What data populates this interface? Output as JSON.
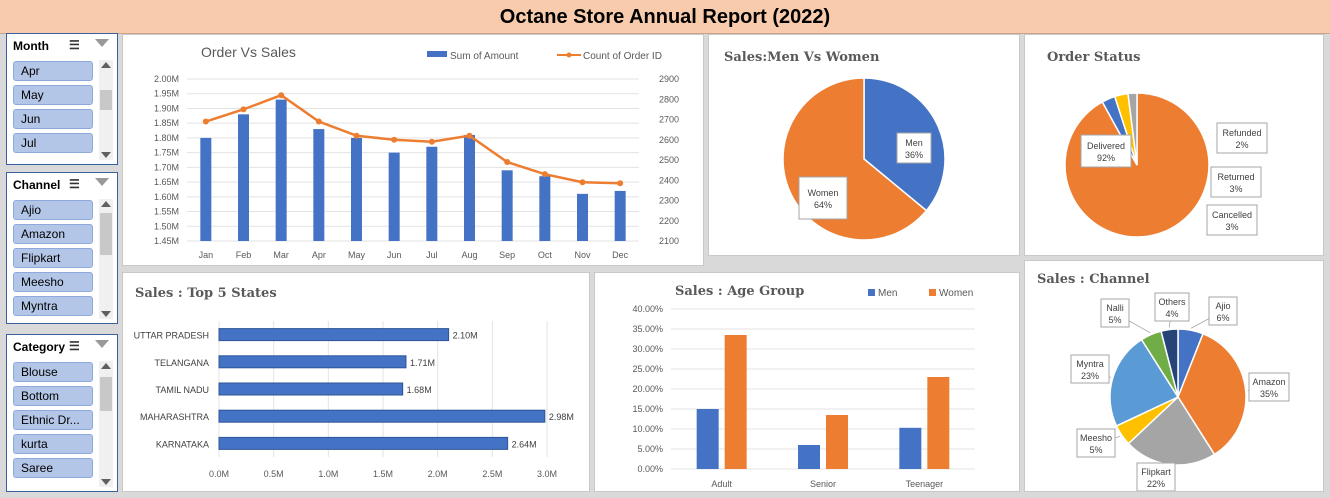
{
  "report_title": "Octane Store Annual Report (2022)",
  "slicers": {
    "month": {
      "header": "Month",
      "items": [
        "Apr",
        "May",
        "Jun",
        "Jul"
      ]
    },
    "channel": {
      "header": "Channel",
      "items": [
        "Ajio",
        "Amazon",
        "Flipkart",
        "Meesho",
        "Myntra"
      ]
    },
    "category": {
      "header": "Category",
      "items": [
        "Blouse",
        "Bottom",
        "Ethnic Dr...",
        "kurta",
        "Saree"
      ]
    }
  },
  "icons": {
    "multi_select": "multi-select-icon",
    "clear_filter": "clear-filter-icon"
  },
  "chart_data": [
    {
      "type": "bar",
      "title": "Order Vs Sales",
      "categories": [
        "Jan",
        "Feb",
        "Mar",
        "Apr",
        "May",
        "Jun",
        "Jul",
        "Aug",
        "Sep",
        "Oct",
        "Nov",
        "Dec"
      ],
      "series": [
        {
          "name": "Sum of Amount",
          "type": "bar",
          "axis": "left",
          "color": "#4472c4",
          "values": [
            1.8,
            1.88,
            1.93,
            1.83,
            1.8,
            1.75,
            1.77,
            1.81,
            1.69,
            1.67,
            1.61,
            1.62
          ]
        },
        {
          "name": "Count of Order ID",
          "type": "line",
          "axis": "right",
          "color": "#ed7d31",
          "values": [
            2690,
            2750,
            2820,
            2690,
            2620,
            2600,
            2590,
            2620,
            2490,
            2430,
            2390,
            2385
          ]
        }
      ],
      "yticks": [
        "2.00M",
        "1.95M",
        "1.90M",
        "1.85M",
        "1.80M",
        "1.75M",
        "1.70M",
        "1.65M",
        "1.60M",
        "1.55M",
        "1.50M",
        "1.45M"
      ],
      "ylim": [
        1.45,
        2.0
      ],
      "y2ticks": [
        "2900",
        "2800",
        "2700",
        "2600",
        "2500",
        "2400",
        "2300",
        "2200",
        "2100"
      ],
      "y2lim": [
        2100,
        2900
      ],
      "legend_position": "top"
    },
    {
      "type": "pie",
      "title": "Sales:Men Vs Women",
      "slices": [
        {
          "label": "Men",
          "pct": "36%",
          "value": 36,
          "color": "#4472c4"
        },
        {
          "label": "Women",
          "pct": "64%",
          "value": 64,
          "color": "#ed7d31"
        }
      ]
    },
    {
      "type": "pie",
      "title": "Order Status",
      "slices": [
        {
          "label": "Delivered",
          "pct": "92%",
          "value": 92,
          "color": "#ed7d31"
        },
        {
          "label": "Cancelled",
          "pct": "3%",
          "value": 3,
          "color": "#4472c4"
        },
        {
          "label": "Returned",
          "pct": "3%",
          "value": 3,
          "color": "#ffc000"
        },
        {
          "label": "Refunded",
          "pct": "2%",
          "value": 2,
          "color": "#a5a5a5"
        }
      ]
    },
    {
      "type": "bar",
      "orientation": "horizontal",
      "title": "Sales : Top 5 States",
      "categories": [
        "UTTAR PRADESH",
        "TELANGANA",
        "TAMIL NADU",
        "MAHARASHTRA",
        "KARNATAKA"
      ],
      "values": [
        2.1,
        1.71,
        1.68,
        2.98,
        2.64
      ],
      "data_labels": [
        "2.10M",
        "1.71M",
        "1.68M",
        "2.98M",
        "2.64M"
      ],
      "xticks": [
        "0.0M",
        "0.5M",
        "1.0M",
        "1.5M",
        "2.0M",
        "2.5M",
        "3.0M"
      ],
      "xlim": [
        0,
        3.0
      ],
      "color": "#4472c4"
    },
    {
      "type": "bar",
      "title": "Sales : Age Group",
      "categories": [
        "Adult",
        "Senior",
        "Teenager"
      ],
      "series": [
        {
          "name": "Men",
          "values": [
            15.0,
            6.0,
            10.3
          ],
          "color": "#4472c4"
        },
        {
          "name": "Women",
          "values": [
            33.5,
            13.5,
            23.0
          ],
          "color": "#ed7d31"
        }
      ],
      "yticks": [
        "40.00%",
        "35.00%",
        "30.00%",
        "25.00%",
        "20.00%",
        "15.00%",
        "10.00%",
        "5.00%",
        "0.00%"
      ],
      "ylim": [
        0,
        40
      ],
      "legend_position": "top-right"
    },
    {
      "type": "pie",
      "title": "Sales : Channel",
      "slices": [
        {
          "label": "Ajio",
          "pct": "6%",
          "value": 6,
          "color": "#4472c4"
        },
        {
          "label": "Amazon",
          "pct": "35%",
          "value": 35,
          "color": "#ed7d31"
        },
        {
          "label": "Flipkart",
          "pct": "22%",
          "value": 22,
          "color": "#a5a5a5"
        },
        {
          "label": "Meesho",
          "pct": "5%",
          "value": 5,
          "color": "#ffc000"
        },
        {
          "label": "Myntra",
          "pct": "23%",
          "value": 23,
          "color": "#5b9bd5"
        },
        {
          "label": "Nalli",
          "pct": "5%",
          "value": 5,
          "color": "#70ad47"
        },
        {
          "label": "Others",
          "pct": "4%",
          "value": 4,
          "color": "#264478"
        }
      ]
    }
  ]
}
